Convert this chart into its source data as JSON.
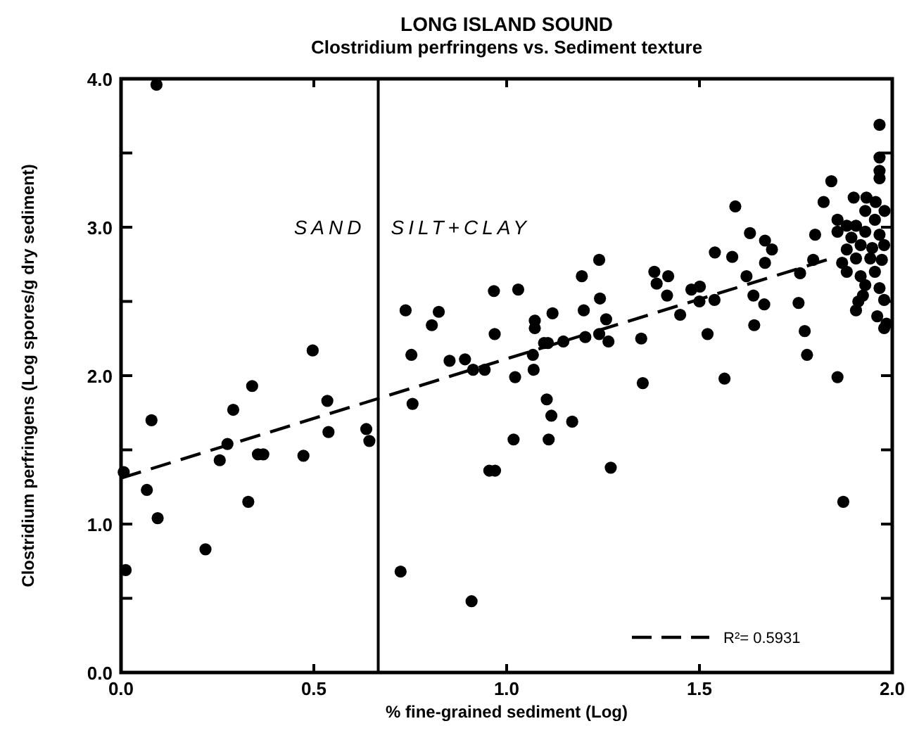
{
  "chart_data": {
    "type": "scatter",
    "title": "LONG ISLAND SOUND",
    "subtitle": "Clostridium perfringens vs. Sediment texture",
    "xlabel": "% fine-grained sediment (Log)",
    "ylabel": "Clostridium perfringens (Log spores/g dry sediment)",
    "xlim": [
      0,
      2.0
    ],
    "ylim": [
      0,
      4.0
    ],
    "xticks": [
      {
        "value": 0,
        "label": "0.0"
      },
      {
        "value": 0.5,
        "label": "0.5"
      },
      {
        "value": 1.0,
        "label": "1.0"
      },
      {
        "value": 1.5,
        "label": "1.5"
      },
      {
        "value": 2.0,
        "label": "2.0"
      }
    ],
    "yticks": [
      {
        "value": 0,
        "label": "0.0"
      },
      {
        "value": 0.5,
        "label": null
      },
      {
        "value": 1.0,
        "label": "1.0"
      },
      {
        "value": 1.5,
        "label": null
      },
      {
        "value": 2.0,
        "label": "2.0"
      },
      {
        "value": 2.5,
        "label": null
      },
      {
        "value": 3.0,
        "label": "3.0"
      },
      {
        "value": 3.5,
        "label": null
      },
      {
        "value": 4.0,
        "label": "4.0"
      }
    ],
    "grid": false,
    "marker": "circle",
    "legend": "bottom right",
    "ref_lines": [
      {
        "axis": "x",
        "value": 0.667,
        "color": "#000000"
      }
    ],
    "annotations": [
      "SAND",
      "SILT+CLAY"
    ],
    "series": [
      {
        "color": "#000000",
        "x": [
          0.092,
          0.738,
          0.824,
          0.806,
          0.497,
          0.753,
          0.852,
          0.892,
          0.913,
          0.943,
          0.34,
          0.535,
          0.756,
          0.079,
          0.291,
          0.276,
          0.256,
          0.355,
          0.369,
          0.473,
          0.538,
          0.636,
          0.644,
          0.007,
          0.067,
          0.095,
          0.33,
          0.219,
          0.012,
          0.725,
          0.909,
          0.955,
          1.068,
          1.022,
          1.07,
          1.104,
          1.116,
          1.17,
          1.018,
          1.109,
          0.97,
          1.27,
          1.353,
          1.565,
          1.779,
          1.858,
          1.873,
          0.967,
          1.03,
          0.969,
          1.073,
          1.073,
          1.119,
          1.097,
          1.107,
          1.147,
          1.195,
          1.24,
          1.242,
          1.2,
          1.258,
          1.204,
          1.24,
          1.264,
          1.349,
          1.383,
          1.419,
          1.389,
          1.416,
          1.45,
          1.479,
          1.501,
          1.5,
          1.539,
          1.521,
          1.54,
          1.585,
          1.593,
          1.631,
          1.67,
          1.688,
          1.67,
          1.622,
          1.64,
          1.668,
          1.642,
          1.761,
          1.757,
          1.773,
          1.795,
          1.8,
          1.822,
          1.842,
          1.967,
          1.967,
          1.967,
          1.967,
          1.9,
          1.933,
          1.957,
          1.858,
          1.882,
          1.906,
          1.93,
          1.955,
          1.98,
          1.858,
          1.894,
          1.93,
          1.967,
          1.882,
          1.918,
          1.948,
          1.979,
          1.87,
          1.906,
          1.943,
          1.973,
          1.882,
          1.918,
          1.955,
          1.93,
          1.967,
          1.924,
          1.912,
          1.906,
          1.979,
          1.961,
          1.979,
          1.985
        ],
        "values": [
          3.96,
          2.44,
          2.43,
          2.34,
          2.17,
          2.14,
          2.1,
          2.11,
          2.04,
          2.04,
          1.93,
          1.83,
          1.81,
          1.7,
          1.77,
          1.54,
          1.43,
          1.47,
          1.47,
          1.46,
          1.62,
          1.64,
          1.56,
          1.35,
          1.23,
          1.04,
          1.15,
          0.83,
          0.69,
          0.68,
          0.48,
          1.36,
          2.14,
          1.99,
          2.04,
          1.84,
          1.73,
          1.69,
          1.57,
          1.57,
          1.36,
          1.38,
          1.95,
          1.98,
          2.14,
          1.99,
          1.15,
          2.57,
          2.58,
          2.28,
          2.37,
          2.32,
          2.42,
          2.22,
          2.22,
          2.23,
          2.67,
          2.78,
          2.52,
          2.44,
          2.38,
          2.26,
          2.28,
          2.23,
          2.25,
          2.7,
          2.67,
          2.62,
          2.54,
          2.41,
          2.58,
          2.6,
          2.5,
          2.51,
          2.28,
          2.83,
          2.8,
          3.14,
          2.96,
          2.91,
          2.85,
          2.76,
          2.67,
          2.54,
          2.48,
          2.34,
          2.69,
          2.49,
          2.3,
          2.78,
          2.95,
          3.17,
          3.31,
          3.69,
          3.47,
          3.38,
          3.33,
          3.2,
          3.2,
          3.17,
          3.05,
          3.01,
          3.01,
          3.11,
          3.05,
          3.11,
          2.97,
          2.93,
          2.97,
          2.95,
          2.85,
          2.88,
          2.86,
          2.88,
          2.76,
          2.79,
          2.79,
          2.78,
          2.7,
          2.67,
          2.7,
          2.61,
          2.59,
          2.54,
          2.5,
          2.44,
          2.51,
          2.4,
          2.32,
          2.35
        ]
      },
      {
        "type": "line",
        "name": "R²= 0.5931",
        "color": "#000000",
        "line_style": "dashed",
        "marker": "none",
        "x": [
          0,
          1.83
        ],
        "values": [
          1.31,
          2.78
        ]
      }
    ]
  }
}
